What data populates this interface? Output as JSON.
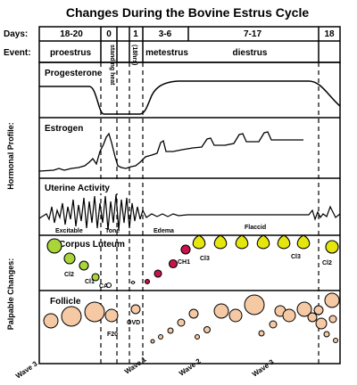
{
  "title": "Changes During the Bovine Estrus Cycle",
  "row_labels": {
    "days": "Days:",
    "event": "Event:"
  },
  "days": [
    "18-20",
    "0",
    "1",
    "3-6",
    "7-17",
    "18"
  ],
  "events": {
    "proestrus": "proestrus",
    "standing_heat": "standing heat",
    "hours": "(18hrs)",
    "metestrus": "metestrus",
    "diestrus": "diestrus"
  },
  "side_labels": {
    "hormonal": "Hormonal Profile:",
    "palpable": "Palpable Changes:"
  },
  "panels": {
    "progesterone": "Progesterone",
    "estrogen": "Estrogen",
    "uterine": "Uterine Activity",
    "corpus_luteum": "Corpus Luteum",
    "follicle": "Follicle"
  },
  "uterine_notes": {
    "excitable": "Excitable",
    "tone": "Tone",
    "edema": "Edema",
    "flaccid": "Flaccid"
  },
  "cl_labels": {
    "cl2_left": "Cl2",
    "cl1": "Cl1",
    "ca": "CA",
    "ch1": "CH1",
    "cl3_a": "Cl3",
    "cl3_b": "Cl3",
    "cl2_right": "Cl2"
  },
  "follicle_labels": {
    "f20": "F20",
    "ovd": "OVD"
  },
  "waves": {
    "w3a": "Wave 3",
    "w1": "Wave 1",
    "w2": "Wave 2",
    "w3b": "Wave 3"
  },
  "colors": {
    "cl_yellow": "#e6e60f",
    "cl_green": "#a9d43a",
    "cl_red": "#c8144a",
    "follicle": "#f5c9a4",
    "stroke": "#000000"
  }
}
